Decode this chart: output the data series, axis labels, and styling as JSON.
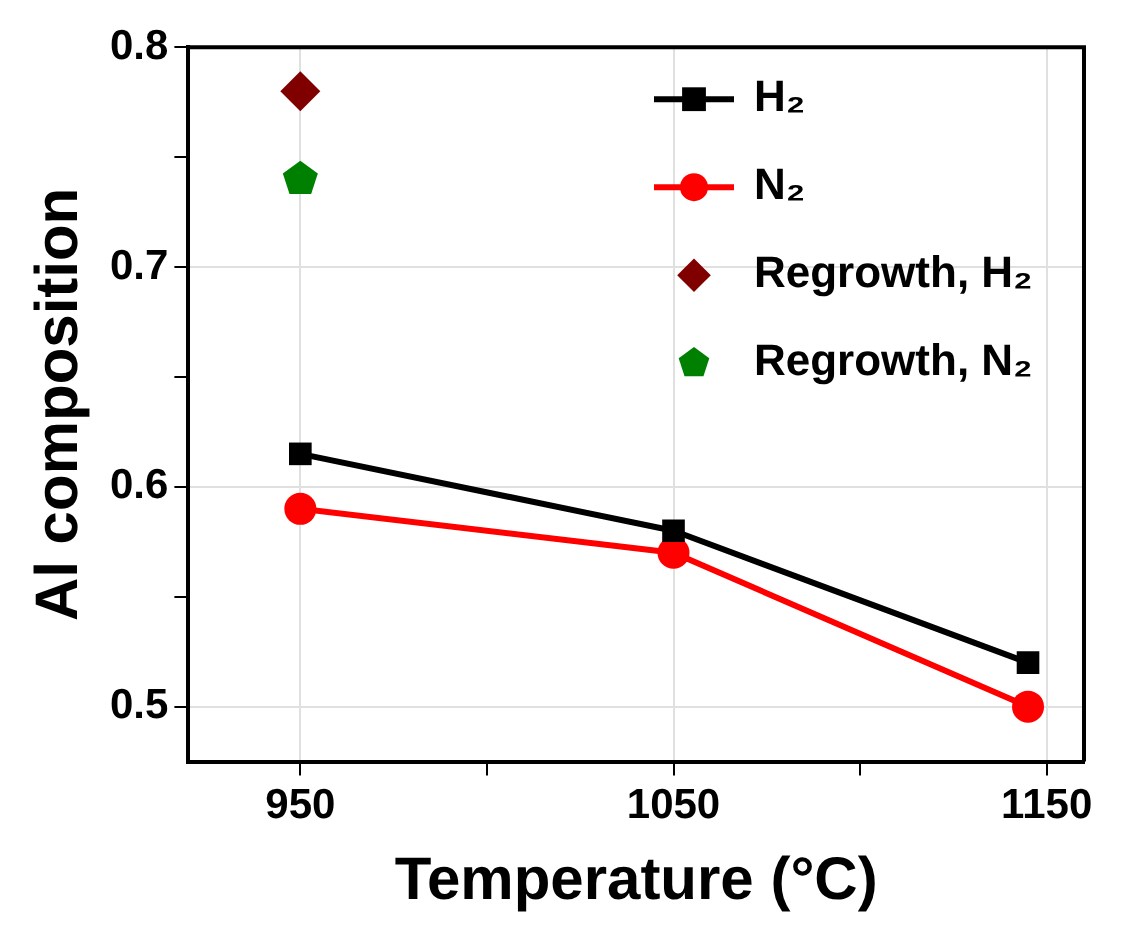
{
  "chart_data": {
    "type": "line",
    "xlabel": "Temperature (°C)",
    "ylabel": "Al composition",
    "xlim": [
      920,
      1160
    ],
    "xticks": [
      950,
      {
        "value": 1000,
        "label": null
      },
      1050,
      {
        "value": 1100,
        "label": null
      },
      1150
    ],
    "ylim": [
      0.475,
      0.8
    ],
    "yticks": [
      {
        "value": 0.5,
        "label": "0.5"
      },
      {
        "value": 0.55,
        "label": null
      },
      {
        "value": 0.6,
        "label": "0.6"
      },
      {
        "value": 0.65,
        "label": null
      },
      {
        "value": 0.7,
        "label": "0.7"
      },
      {
        "value": 0.75,
        "label": null
      },
      {
        "value": 0.8,
        "label": "0.8"
      }
    ],
    "grid": true,
    "legend": "top right",
    "line_style": "solid",
    "series": [
      {
        "name": "H₂",
        "marker": "square",
        "color": "#000000",
        "x": [
          950,
          1050,
          1145
        ],
        "values": [
          0.615,
          0.58,
          0.52
        ]
      },
      {
        "name": "N₂",
        "marker": "circle",
        "color": "#ff0000",
        "x": [
          950,
          1050,
          1145
        ],
        "values": [
          0.59,
          0.57,
          0.5
        ]
      },
      {
        "name": "Regrowth, H₂",
        "type": "scatter",
        "marker": "diamond",
        "color": "#800000",
        "x": [
          950
        ],
        "values": [
          0.78
        ]
      },
      {
        "name": "Regrowth, N₂",
        "type": "scatter",
        "color": "#008000",
        "x": [
          950
        ],
        "values": [
          0.74
        ]
      }
    ]
  }
}
